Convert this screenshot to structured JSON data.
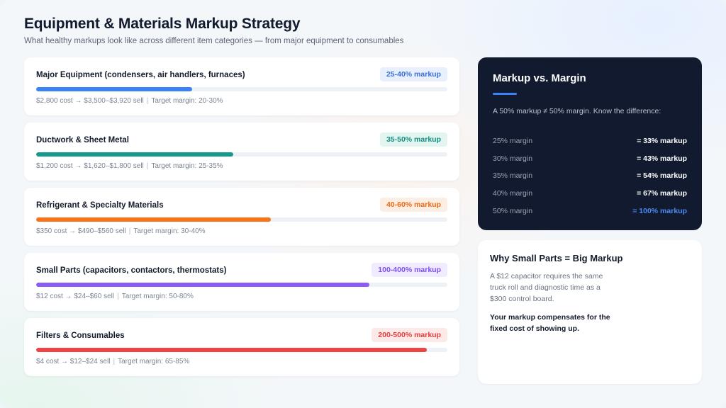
{
  "header": {
    "title": "Equipment & Materials Markup Strategy",
    "subtitle": "What healthy markups look like across different item categories — from major equipment to consumables"
  },
  "categories": [
    {
      "name": "Major Equipment (condensers, air handlers, furnaces)",
      "badge": "25-40% markup",
      "cost": "$2,800 cost → $3,500–$3,920 sell",
      "target": "Target margin: 20-30%",
      "bar_fill_fraction": 0.38,
      "color": "#3b82f6",
      "badge_bg": "#e8f0fe",
      "badge_fg": "#3b6fd8"
    },
    {
      "name": "Ductwork & Sheet Metal",
      "badge": "35-50% markup",
      "cost": "$1,200 cost → $1,620–$1,800 sell",
      "target": "Target margin: 25-35%",
      "bar_fill_fraction": 0.48,
      "color": "#14998a",
      "badge_bg": "#e2f5f1",
      "badge_fg": "#12907f"
    },
    {
      "name": "Refrigerant & Specialty Materials",
      "badge": "40-60% markup",
      "cost": "$350 cost → $490–$560 sell",
      "target": "Target margin: 30-40%",
      "bar_fill_fraction": 0.57,
      "color": "#f97316",
      "badge_bg": "#fdeee4",
      "badge_fg": "#ea6c14"
    },
    {
      "name": "Small Parts (capacitors, contactors, thermostats)",
      "badge": "100-400% markup",
      "cost": "$12 cost → $24–$60 sell",
      "target": "Target margin: 50-80%",
      "bar_fill_fraction": 0.81,
      "color": "#8b5cf6",
      "badge_bg": "#f0ebfe",
      "badge_fg": "#7c4ff0"
    },
    {
      "name": "Filters & Consumables",
      "badge": "200-500% markup",
      "cost": "$4 cost → $12–$24 sell",
      "target": "Target margin: 65-85%",
      "bar_fill_fraction": 0.95,
      "color": "#ef4444",
      "badge_bg": "#fde9e8",
      "badge_fg": "#e23d3d"
    }
  ],
  "markup_vs_margin": {
    "title": "Markup vs. Margin",
    "intro": "A 50% markup ≠ 50% margin. Know the difference:",
    "accent": "#3b82f6",
    "rows": [
      {
        "margin": "25% margin",
        "markup": "= 33% markup",
        "highlight": false
      },
      {
        "margin": "30% margin",
        "markup": "= 43% markup",
        "highlight": false
      },
      {
        "margin": "35% margin",
        "markup": "= 54% markup",
        "highlight": false
      },
      {
        "margin": "40% margin",
        "markup": "= 67% markup",
        "highlight": false
      },
      {
        "margin": "50% margin",
        "markup": "= 100% markup",
        "highlight": true
      }
    ]
  },
  "small_parts_note": {
    "title": "Why Small Parts = Big Markup",
    "body": "A $12 capacitor requires the same truck roll and diagnostic time as a $300 control board.",
    "emphasis": "Your markup compensates for the fixed cost of showing up."
  }
}
